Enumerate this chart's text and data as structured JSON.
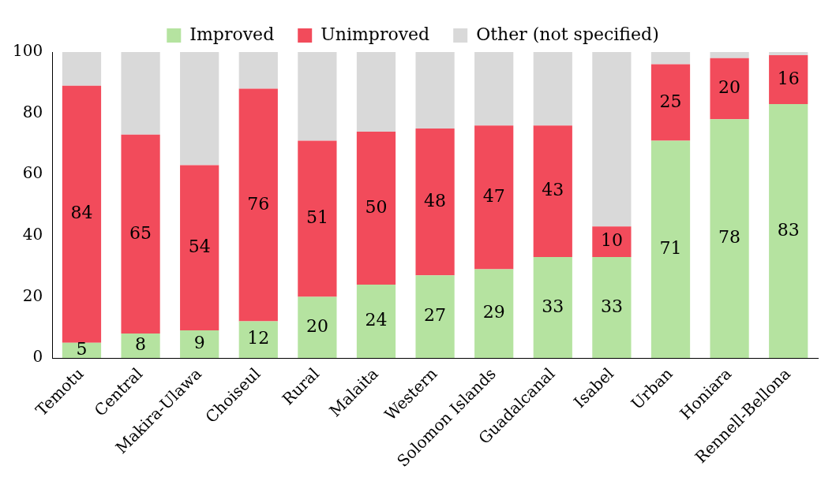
{
  "chart_data": {
    "type": "bar",
    "stacked": true,
    "categories": [
      "Temotu",
      "Central",
      "Makira-Ulawa",
      "Choiseul",
      "Rural",
      "Malaita",
      "Western",
      "Solomon Islands",
      "Guadalcanal",
      "Isabel",
      "Urban",
      "Honiara",
      "Rennell-Bellona"
    ],
    "series": [
      {
        "name": "Improved",
        "color": "#b5e3a0",
        "values": [
          5,
          8,
          9,
          12,
          20,
          24,
          27,
          29,
          33,
          33,
          71,
          78,
          83
        ],
        "value_labels": [
          "5",
          "8",
          "9",
          "12",
          "20",
          "24",
          "27",
          "29",
          "33",
          "33",
          "71",
          "78",
          "83"
        ]
      },
      {
        "name": "Unimproved",
        "color": "#f24b5b",
        "values": [
          84,
          65,
          54,
          76,
          51,
          50,
          48,
          47,
          43,
          10,
          25,
          20,
          16
        ],
        "value_labels": [
          "84",
          "65",
          "54",
          "76",
          "51",
          "50",
          "48",
          "47",
          "43",
          "10",
          "25",
          "20",
          "16"
        ]
      },
      {
        "name": "Other (not specified)",
        "color": "#d9d9d9",
        "values": [
          11,
          27,
          37,
          12,
          29,
          26,
          25,
          24,
          24,
          57,
          4,
          2,
          1
        ]
      }
    ],
    "ylim": [
      0,
      100
    ],
    "yticks": [
      0,
      20,
      40,
      60,
      80,
      100
    ],
    "grid": false,
    "legend": "top"
  }
}
